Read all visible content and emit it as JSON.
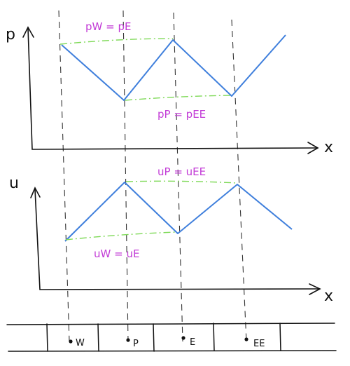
{
  "colors": {
    "curve": "#3f7fdc",
    "equality_line": "#7ed957",
    "annotation": "#c23cd6",
    "axis": "#111111",
    "guide": "#333333"
  },
  "plots": [
    {
      "id": "p",
      "y_label": "p",
      "x_label": "x",
      "profile": "zigzag pressure",
      "annotations": [
        "pW = pE",
        "pP = pEE"
      ]
    },
    {
      "id": "u",
      "y_label": "u",
      "x_label": "x",
      "profile": "zigzag velocity",
      "annotations": [
        "uP = uEE",
        "uW = uE"
      ]
    }
  ],
  "grid": {
    "nodes": [
      "W",
      "P",
      "E",
      "EE"
    ]
  }
}
